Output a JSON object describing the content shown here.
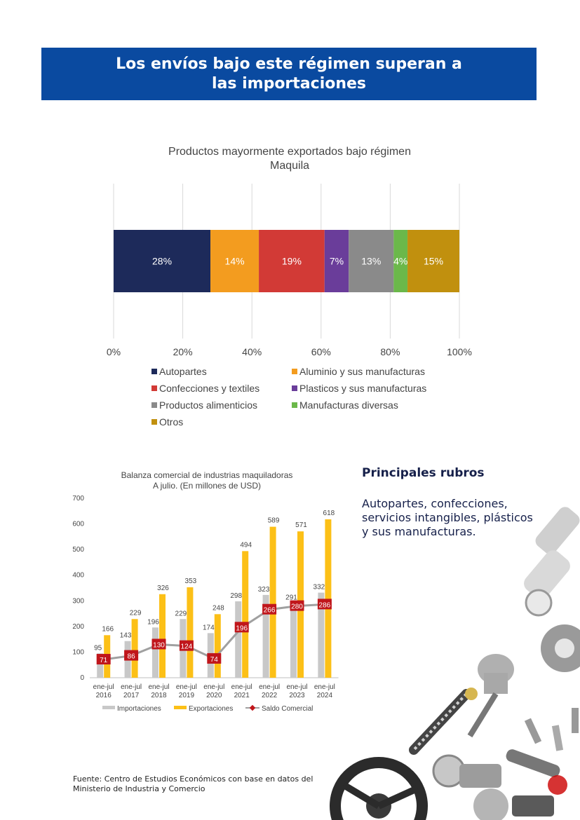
{
  "header": {
    "title": "Los envíos bajo este régimen superan a las importaciones"
  },
  "rubros": {
    "title": "Principales rubros",
    "text": "Autopartes, confecciones, servicios intangibles, plásticos y sus manufacturas."
  },
  "source": "Fuente: Centro de Estudios Económicos con base en datos del Ministerio de Industria y Comercio",
  "chart_data": [
    {
      "type": "bar",
      "stacked": "100%",
      "orientation": "horizontal",
      "title_lines": [
        "Productos mayormente exportados bajo régimen",
        "Maquila"
      ],
      "x_ticks": [
        "0%",
        "20%",
        "40%",
        "60%",
        "80%",
        "100%"
      ],
      "xlim": [
        0,
        100
      ],
      "legend_placement": "bottom",
      "series": [
        {
          "name": "Autopartes",
          "value": 28,
          "label": "28%",
          "color": "#1d2a5a"
        },
        {
          "name": "Aluminio y sus manufacturas",
          "value": 14,
          "label": "14%",
          "color": "#f39c1f"
        },
        {
          "name": "Confecciones y textiles",
          "value": 19,
          "label": "19%",
          "color": "#d23a36"
        },
        {
          "name": "Plasticos y sus manufacturas",
          "value": 7,
          "label": "7%",
          "color": "#6a3d9a"
        },
        {
          "name": "Productos alimenticios",
          "value": 13,
          "label": "13%",
          "color": "#8a8a8a"
        },
        {
          "name": "Manufacturas diversas",
          "value": 4,
          "label": "4%",
          "color": "#6bb84a"
        },
        {
          "name": "Otros",
          "value": 15,
          "label": "15%",
          "color": "#c1900e"
        }
      ]
    },
    {
      "type": "bar",
      "title_lines": [
        "Balanza comercial de industrias maquiladoras",
        "A julio.  (En millones  de USD)"
      ],
      "categories": [
        [
          "ene-jul",
          "2016"
        ],
        [
          "ene-jul",
          "2017"
        ],
        [
          "ene-jul",
          "2018"
        ],
        [
          "ene-jul",
          "2019"
        ],
        [
          "ene-jul",
          "2020"
        ],
        [
          "ene-jul",
          "2021"
        ],
        [
          "ene-jul",
          "2022"
        ],
        [
          "ene-jul",
          "2023"
        ],
        [
          "ene-jul",
          "2024"
        ]
      ],
      "ylim": [
        0,
        700
      ],
      "y_ticks": [
        "0",
        "100",
        "200",
        "300",
        "400",
        "500",
        "600",
        "700"
      ],
      "legend_placement": "bottom",
      "series": [
        {
          "name": "Importaciones",
          "type": "bar",
          "color": "#c8c8c8",
          "values": [
            95,
            143,
            196,
            229,
            174,
            298,
            323,
            291,
            332
          ],
          "labels": [
            "95",
            "143",
            "196",
            "229",
            "174",
            "298",
            "323",
            "291",
            "332"
          ]
        },
        {
          "name": "Exportaciones",
          "type": "bar",
          "color": "#fcc017",
          "values": [
            166,
            229,
            326,
            353,
            248,
            494,
            589,
            571,
            618
          ],
          "labels": [
            "166",
            "229",
            "326",
            "353",
            "248",
            "494",
            "589",
            "571",
            "618"
          ]
        },
        {
          "name": "Saldo Comercial",
          "type": "line",
          "color": "#a0a0a0",
          "marker_color": "#c0161b",
          "values": [
            71,
            86,
            130,
            124,
            74,
            196,
            266,
            280,
            286
          ],
          "labels": [
            "71",
            "86",
            "130",
            "124",
            "74",
            "196",
            "266",
            "280",
            "286"
          ]
        }
      ]
    }
  ]
}
